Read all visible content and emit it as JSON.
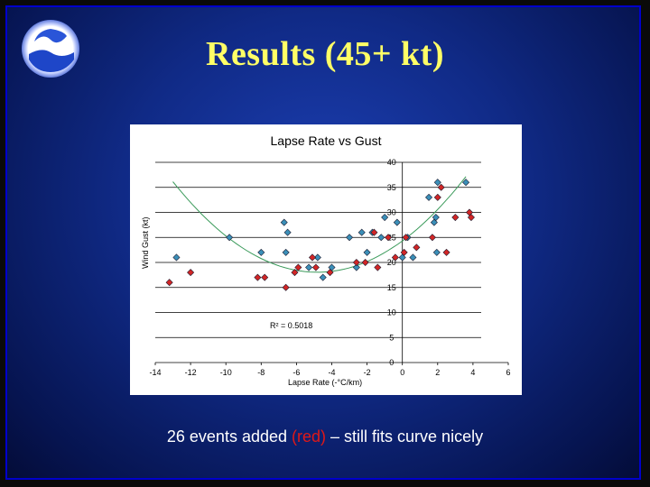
{
  "slide": {
    "title": "Results (45+ kt)",
    "caption_before": "26 events added ",
    "caption_red": "(red)",
    "caption_after": " – still fits curve nicely",
    "logo_text": "NOAA"
  },
  "colors": {
    "title": "#ffff66",
    "blue_series": "#3b8fb8",
    "red_series": "#d22626",
    "trend": "#3a9a5a"
  },
  "chart_data": {
    "type": "scatter",
    "title": "Lapse Rate vs Gust",
    "xlabel": "Lapse Rate (-°C/km)",
    "ylabel": "Wind Gust (kt)",
    "annotation": "R² = 0.5018",
    "xlim": [
      -14,
      6
    ],
    "ylim": [
      0,
      40
    ],
    "x_ticks": [
      -14,
      -12,
      -10,
      -8,
      -6,
      -4,
      -2,
      0,
      2,
      4,
      6
    ],
    "y_ticks": [
      0,
      5,
      10,
      15,
      20,
      25,
      30,
      35,
      40
    ],
    "grid": "horizontal",
    "series": [
      {
        "color": "blue",
        "points": [
          [
            -12.8,
            21
          ],
          [
            -9.8,
            25
          ],
          [
            -8,
            22
          ],
          [
            -6.7,
            28
          ],
          [
            -6.5,
            26
          ],
          [
            -6.6,
            22
          ],
          [
            -5.3,
            19
          ],
          [
            -4.8,
            21
          ],
          [
            -4.5,
            17
          ],
          [
            -4.0,
            19
          ],
          [
            -3.0,
            25
          ],
          [
            -2.6,
            19
          ],
          [
            -2.3,
            26
          ],
          [
            -2.0,
            22
          ],
          [
            -1.7,
            26
          ],
          [
            -1.2,
            25
          ],
          [
            -1.0,
            29
          ],
          [
            -0.3,
            28
          ],
          [
            0.3,
            25
          ],
          [
            0.0,
            21
          ],
          [
            0.6,
            21
          ],
          [
            1.5,
            33
          ],
          [
            1.8,
            28
          ],
          [
            1.9,
            29
          ],
          [
            2.0,
            36
          ],
          [
            1.95,
            22
          ],
          [
            3.6,
            36
          ]
        ]
      },
      {
        "color": "red",
        "points": [
          [
            -13.2,
            16
          ],
          [
            -12.0,
            18
          ],
          [
            -8.2,
            17
          ],
          [
            -7.8,
            17
          ],
          [
            -6.6,
            15
          ],
          [
            -6.1,
            18
          ],
          [
            -5.9,
            19
          ],
          [
            -5.1,
            21
          ],
          [
            -4.9,
            19
          ],
          [
            -4.1,
            18
          ],
          [
            -2.6,
            20
          ],
          [
            -2.1,
            20
          ],
          [
            -1.6,
            26
          ],
          [
            -1.4,
            19
          ],
          [
            -0.8,
            25
          ],
          [
            -0.4,
            21
          ],
          [
            0.1,
            22
          ],
          [
            0.2,
            25
          ],
          [
            0.8,
            23
          ],
          [
            1.7,
            25
          ],
          [
            2.0,
            33
          ],
          [
            2.2,
            35
          ],
          [
            2.5,
            22
          ],
          [
            3.0,
            29
          ],
          [
            3.8,
            30
          ],
          [
            3.9,
            29
          ]
        ]
      }
    ],
    "trendline": {
      "type": "polynomial",
      "coefficients": [
        24.3,
        2.6,
        0.27
      ]
    }
  }
}
